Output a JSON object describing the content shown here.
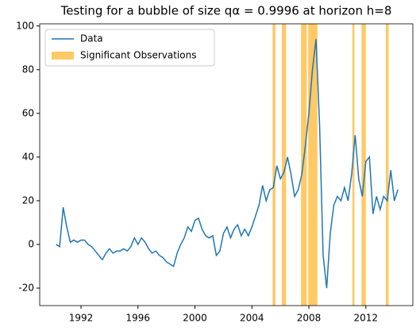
{
  "chart_data": {
    "type": "line",
    "title": "Testing for a bubble of size qα = 0.9996 at horizon h=8",
    "x": [
      1990.25,
      1990.5,
      1990.75,
      1991,
      1991.25,
      1991.5,
      1991.75,
      1992,
      1992.25,
      1992.5,
      1992.75,
      1993,
      1993.25,
      1993.5,
      1993.75,
      1994,
      1994.25,
      1994.5,
      1994.75,
      1995,
      1995.25,
      1995.5,
      1995.75,
      1996,
      1996.25,
      1996.5,
      1996.75,
      1997,
      1997.25,
      1997.5,
      1997.75,
      1998,
      1998.25,
      1998.5,
      1998.75,
      1999,
      1999.25,
      1999.5,
      1999.75,
      2000,
      2000.25,
      2000.5,
      2000.75,
      2001,
      2001.25,
      2001.5,
      2001.75,
      2002,
      2002.25,
      2002.5,
      2002.75,
      2003,
      2003.25,
      2003.5,
      2003.75,
      2004,
      2004.25,
      2004.5,
      2004.75,
      2005,
      2005.25,
      2005.5,
      2005.75,
      2006,
      2006.25,
      2006.5,
      2006.75,
      2007,
      2007.25,
      2007.5,
      2007.75,
      2008,
      2008.25,
      2008.5,
      2008.75,
      2009,
      2009.25,
      2009.5,
      2009.75,
      2010,
      2010.25,
      2010.5,
      2010.75,
      2011,
      2011.25,
      2011.5,
      2011.75,
      2012,
      2012.25,
      2012.5,
      2012.75,
      2013,
      2013.25,
      2013.5,
      2013.75,
      2014,
      2014.25
    ],
    "series": [
      {
        "name": "Data",
        "color": "#1f77b4",
        "values": [
          0,
          -1,
          17,
          8,
          1,
          2,
          1,
          2,
          2,
          0,
          -1,
          -3,
          -5,
          -7,
          -4,
          -2,
          -4,
          -3,
          -3,
          -2,
          -3,
          -1,
          3,
          0,
          3,
          1,
          -2,
          -4,
          -3,
          -5,
          -6,
          -8,
          -9,
          -10,
          -4,
          0,
          3,
          8,
          6,
          11,
          12,
          7,
          4,
          3,
          4,
          -5,
          -3,
          5,
          8,
          3,
          7,
          9,
          4,
          7,
          4,
          8,
          13,
          18,
          27,
          20,
          25,
          26,
          36,
          30,
          33,
          40,
          32,
          22,
          25,
          32,
          45,
          60,
          80,
          94,
          55,
          -5,
          -20,
          5,
          18,
          22,
          20,
          26,
          20,
          32,
          50,
          30,
          22,
          38,
          40,
          14,
          22,
          16,
          22,
          20,
          34,
          20,
          25
        ]
      }
    ],
    "spans": {
      "name": "Significant Observations",
      "color": "#ffa500",
      "ranges": [
        [
          2005.45,
          2005.65
        ],
        [
          2006.1,
          2006.4
        ],
        [
          2007.45,
          2007.85
        ],
        [
          2007.95,
          2008.6
        ],
        [
          2011.05,
          2011.2
        ],
        [
          2011.7,
          2012.0
        ],
        [
          2013.4,
          2013.6
        ]
      ]
    },
    "xlim": [
      1989.1,
      2015.3
    ],
    "xticks": [
      1992,
      1996,
      2000,
      2004,
      2008,
      2012
    ],
    "ylim": [
      -28,
      101
    ],
    "yticks": [
      -20,
      0,
      20,
      40,
      60,
      80,
      100
    ],
    "legend": "upper left"
  }
}
